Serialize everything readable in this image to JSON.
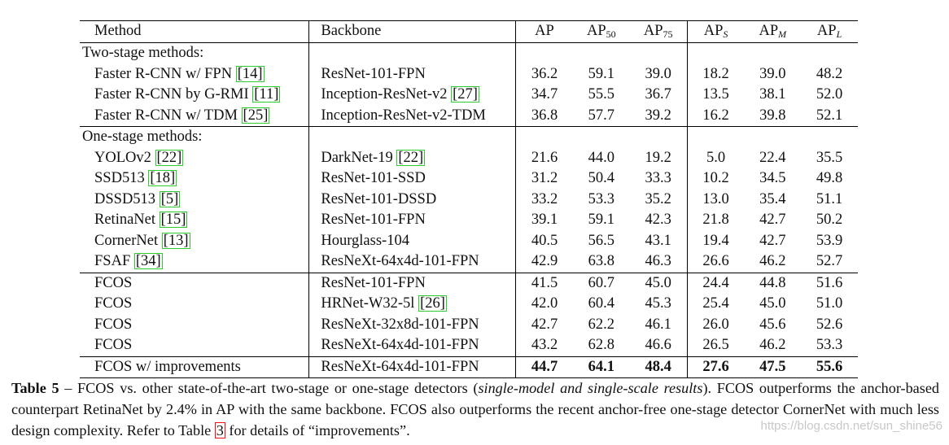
{
  "table": {
    "headers": {
      "method": "Method",
      "backbone": "Backbone",
      "ap": "AP",
      "ap50_base": "AP",
      "ap50_sub": "50",
      "ap75_base": "AP",
      "ap75_sub": "75",
      "aps_base": "AP",
      "aps_sub": "S",
      "apm_base": "AP",
      "apm_sub": "M",
      "apl_base": "AP",
      "apl_sub": "L"
    },
    "groups": [
      {
        "label": "Two-stage methods:",
        "rows": [
          {
            "method": "Faster R-CNN w/ FPN",
            "method_cite": "[14]",
            "backbone": "ResNet-101-FPN",
            "backbone_cite": "",
            "values": [
              "36.2",
              "59.1",
              "39.0",
              "18.2",
              "39.0",
              "48.2"
            ]
          },
          {
            "method": "Faster R-CNN by G-RMI",
            "method_cite": "[11]",
            "backbone": "Inception-ResNet-v2",
            "backbone_cite": "[27]",
            "values": [
              "34.7",
              "55.5",
              "36.7",
              "13.5",
              "38.1",
              "52.0"
            ]
          },
          {
            "method": "Faster R-CNN w/ TDM",
            "method_cite": "[25]",
            "backbone": "Inception-ResNet-v2-TDM",
            "backbone_cite": "",
            "values": [
              "36.8",
              "57.7",
              "39.2",
              "16.2",
              "39.8",
              "52.1"
            ]
          }
        ]
      },
      {
        "label": "One-stage methods:",
        "rows": [
          {
            "method": "YOLOv2",
            "method_cite": "[22]",
            "backbone": "DarkNet-19",
            "backbone_cite": "[22]",
            "values": [
              "21.6",
              "44.0",
              "19.2",
              "5.0",
              "22.4",
              "35.5"
            ]
          },
          {
            "method": "SSD513",
            "method_cite": "[18]",
            "backbone": "ResNet-101-SSD",
            "backbone_cite": "",
            "values": [
              "31.2",
              "50.4",
              "33.3",
              "10.2",
              "34.5",
              "49.8"
            ]
          },
          {
            "method": "DSSD513",
            "method_cite": "[5]",
            "backbone": "ResNet-101-DSSD",
            "backbone_cite": "",
            "values": [
              "33.2",
              "53.3",
              "35.2",
              "13.0",
              "35.4",
              "51.1"
            ]
          },
          {
            "method": "RetinaNet",
            "method_cite": "[15]",
            "backbone": "ResNet-101-FPN",
            "backbone_cite": "",
            "values": [
              "39.1",
              "59.1",
              "42.3",
              "21.8",
              "42.7",
              "50.2"
            ]
          },
          {
            "method": "CornerNet",
            "method_cite": "[13]",
            "backbone": "Hourglass-104",
            "backbone_cite": "",
            "values": [
              "40.5",
              "56.5",
              "43.1",
              "19.4",
              "42.7",
              "53.9"
            ]
          },
          {
            "method": "FSAF",
            "method_cite": "[34]",
            "backbone": "ResNeXt-64x4d-101-FPN",
            "backbone_cite": "",
            "values": [
              "42.9",
              "63.8",
              "46.3",
              "26.6",
              "46.2",
              "52.7"
            ]
          }
        ]
      }
    ],
    "fcos_rows": [
      {
        "method": "FCOS",
        "backbone": "ResNet-101-FPN",
        "backbone_cite": "",
        "values": [
          "41.5",
          "60.7",
          "45.0",
          "24.4",
          "44.8",
          "51.6"
        ]
      },
      {
        "method": "FCOS",
        "backbone": "HRNet-W32-5l",
        "backbone_cite": "[26]",
        "values": [
          "42.0",
          "60.4",
          "45.3",
          "25.4",
          "45.0",
          "51.0"
        ]
      },
      {
        "method": "FCOS",
        "backbone": "ResNeXt-32x8d-101-FPN",
        "backbone_cite": "",
        "values": [
          "42.7",
          "62.2",
          "46.1",
          "26.0",
          "45.6",
          "52.6"
        ]
      },
      {
        "method": "FCOS",
        "backbone": "ResNeXt-64x4d-101-FPN",
        "backbone_cite": "",
        "values": [
          "43.2",
          "62.8",
          "46.6",
          "26.5",
          "46.2",
          "53.3"
        ]
      }
    ],
    "final_row": {
      "method": "FCOS w/ improvements",
      "backbone": "ResNeXt-64x4d-101-FPN",
      "values": [
        "44.7",
        "64.1",
        "48.4",
        "27.6",
        "47.5",
        "55.6"
      ]
    }
  },
  "caption": {
    "lead": "Table 5",
    "dash": " – ",
    "part1": "FCOS vs. other state-of-the-art two-stage or one-stage detectors (",
    "italic": "single-model and single-scale results",
    "part2": "). FCOS outperforms the anchor-based counterpart RetinaNet by 2.4% in AP with the same backbone. FCOS also outperforms the recent anchor-free one-stage detector CornerNet with much less design complexity. Refer to Table ",
    "table_ref": "3",
    "part3": " for details of “improvements”."
  },
  "watermark": "https://blog.csdn.net/sun_shine56",
  "colors": {
    "citation_box": "#2dcc2d",
    "table_ref_box": "#e11111"
  }
}
